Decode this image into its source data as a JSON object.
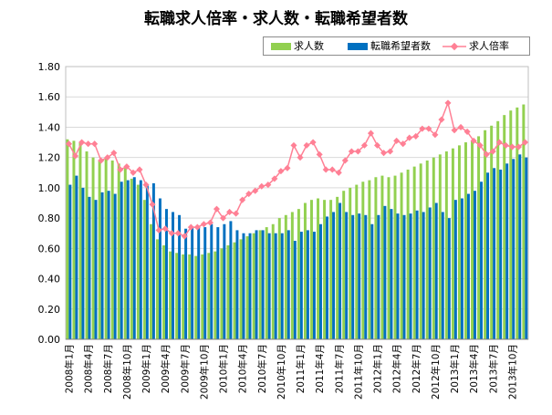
{
  "chart_data": {
    "type": "bar+line",
    "title": "転職求人倍率・求人数・転職希望者数",
    "xlabel": "",
    "ylabel": "",
    "ylim": [
      0,
      1.8
    ],
    "yticks": [
      "0.00",
      "0.20",
      "0.40",
      "0.60",
      "0.80",
      "1.00",
      "1.20",
      "1.40",
      "1.60",
      "1.80"
    ],
    "grid": true,
    "legend_position": "top-right",
    "colors": {
      "jobs": "#92d050",
      "seekers": "#0070c0",
      "ratio": "#ff8095"
    },
    "categories": [
      "2008年1月",
      "2008年2月",
      "2008年3月",
      "2008年4月",
      "2008年5月",
      "2008年6月",
      "2008年7月",
      "2008年8月",
      "2008年9月",
      "2008年10月",
      "2008年11月",
      "2008年12月",
      "2009年1月",
      "2009年2月",
      "2009年3月",
      "2009年4月",
      "2009年5月",
      "2009年6月",
      "2009年7月",
      "2009年8月",
      "2009年9月",
      "2009年10月",
      "2009年11月",
      "2009年12月",
      "2010年1月",
      "2010年2月",
      "2010年3月",
      "2010年4月",
      "2010年5月",
      "2010年6月",
      "2010年7月",
      "2010年8月",
      "2010年9月",
      "2010年10月",
      "2010年11月",
      "2010年12月",
      "2011年1月",
      "2011年2月",
      "2011年3月",
      "2011年4月",
      "2011年5月",
      "2011年6月",
      "2011年7月",
      "2011年8月",
      "2011年9月",
      "2011年10月",
      "2011年11月",
      "2011年12月",
      "2012年1月",
      "2012年2月",
      "2012年3月",
      "2012年4月",
      "2012年5月",
      "2012年6月",
      "2012年7月",
      "2012年8月",
      "2012年9月",
      "2012年10月",
      "2012年11月",
      "2012年12月",
      "2013年1月",
      "2013年2月",
      "2013年3月",
      "2013年4月",
      "2013年5月",
      "2013年6月",
      "2013年7月",
      "2013年8月",
      "2013年9月",
      "2013年10月",
      "2013年11月",
      "2013年12月"
    ],
    "tick_labels": [
      "2008年1月",
      "2008年4月",
      "2008年7月",
      "2008年10月",
      "2009年1月",
      "2009年4月",
      "2009年7月",
      "2009年10月",
      "2010年1月",
      "2010年4月",
      "2010年7月",
      "2010年10月",
      "2011年1月",
      "2011年4月",
      "2011年7月",
      "2011年10月",
      "2012年1月",
      "2012年4月",
      "2012年7月",
      "2012年10月",
      "2013年1月",
      "2013年4月",
      "2013年7月",
      "2013年10月"
    ],
    "series": [
      {
        "name": "求人数",
        "kind": "bar",
        "values": [
          1.32,
          1.31,
          1.3,
          1.24,
          1.2,
          1.18,
          1.2,
          1.18,
          1.16,
          1.13,
          1.06,
          1.02,
          0.92,
          0.76,
          0.66,
          0.62,
          0.58,
          0.57,
          0.56,
          0.56,
          0.55,
          0.56,
          0.57,
          0.58,
          0.6,
          0.62,
          0.64,
          0.66,
          0.68,
          0.7,
          0.72,
          0.74,
          0.76,
          0.8,
          0.82,
          0.84,
          0.86,
          0.9,
          0.92,
          0.93,
          0.92,
          0.92,
          0.94,
          0.98,
          1.0,
          1.02,
          1.04,
          1.05,
          1.07,
          1.08,
          1.07,
          1.08,
          1.1,
          1.12,
          1.14,
          1.16,
          1.18,
          1.2,
          1.22,
          1.24,
          1.26,
          1.28,
          1.3,
          1.31,
          1.34,
          1.38,
          1.41,
          1.44,
          1.48,
          1.51,
          1.53,
          1.55
        ]
      },
      {
        "name": "転職希望者数",
        "kind": "bar",
        "values": [
          1.02,
          1.08,
          1.0,
          0.94,
          0.92,
          0.97,
          0.98,
          0.96,
          1.04,
          1.05,
          1.07,
          1.05,
          1.02,
          1.03,
          0.93,
          0.86,
          0.84,
          0.82,
          0.73,
          0.74,
          0.74,
          0.74,
          0.76,
          0.74,
          0.76,
          0.78,
          0.72,
          0.7,
          0.7,
          0.72,
          0.72,
          0.7,
          0.7,
          0.7,
          0.72,
          0.65,
          0.71,
          0.72,
          0.71,
          0.76,
          0.81,
          0.84,
          0.9,
          0.84,
          0.82,
          0.83,
          0.82,
          0.76,
          0.82,
          0.88,
          0.86,
          0.83,
          0.82,
          0.83,
          0.85,
          0.84,
          0.87,
          0.9,
          0.84,
          0.8,
          0.92,
          0.93,
          0.96,
          0.98,
          1.04,
          1.1,
          1.13,
          1.12,
          1.16,
          1.19,
          1.22,
          1.2
        ]
      },
      {
        "name": "求人倍率",
        "kind": "line",
        "values": [
          1.29,
          1.21,
          1.3,
          1.29,
          1.29,
          1.18,
          1.2,
          1.23,
          1.12,
          1.14,
          1.1,
          1.12,
          1.02,
          0.89,
          0.72,
          0.73,
          0.7,
          0.7,
          0.68,
          0.74,
          0.74,
          0.76,
          0.77,
          0.86,
          0.8,
          0.84,
          0.83,
          0.92,
          0.96,
          0.98,
          1.01,
          1.02,
          1.06,
          1.11,
          1.13,
          1.28,
          1.2,
          1.28,
          1.3,
          1.22,
          1.12,
          1.12,
          1.1,
          1.18,
          1.24,
          1.24,
          1.28,
          1.36,
          1.28,
          1.23,
          1.24,
          1.31,
          1.29,
          1.33,
          1.34,
          1.39,
          1.39,
          1.35,
          1.45,
          1.56,
          1.38,
          1.4,
          1.37,
          1.31,
          1.28,
          1.22,
          1.24,
          1.3,
          1.28,
          1.27,
          1.27,
          1.3
        ]
      }
    ]
  }
}
